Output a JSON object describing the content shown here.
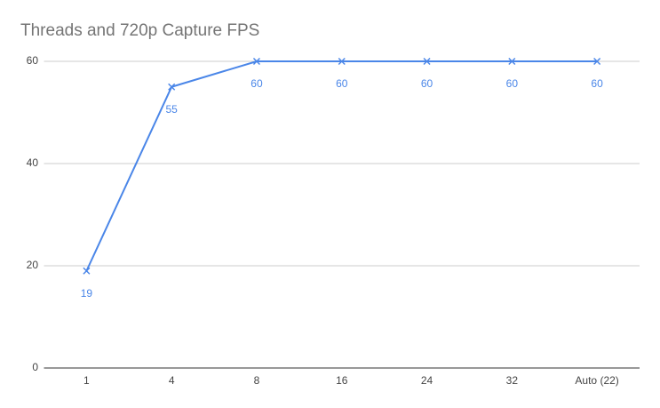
{
  "chart_data": {
    "type": "line",
    "title": "Threads and 720p Capture FPS",
    "categories": [
      "1",
      "4",
      "8",
      "16",
      "24",
      "32",
      "Auto (22)"
    ],
    "series": [
      {
        "name": "FPS",
        "color": "#4a86e8",
        "values": [
          19,
          55,
          60,
          60,
          60,
          60,
          60
        ]
      }
    ],
    "ylim": [
      0,
      60
    ],
    "yticks": [
      0,
      20,
      40,
      60
    ],
    "grid": true
  }
}
